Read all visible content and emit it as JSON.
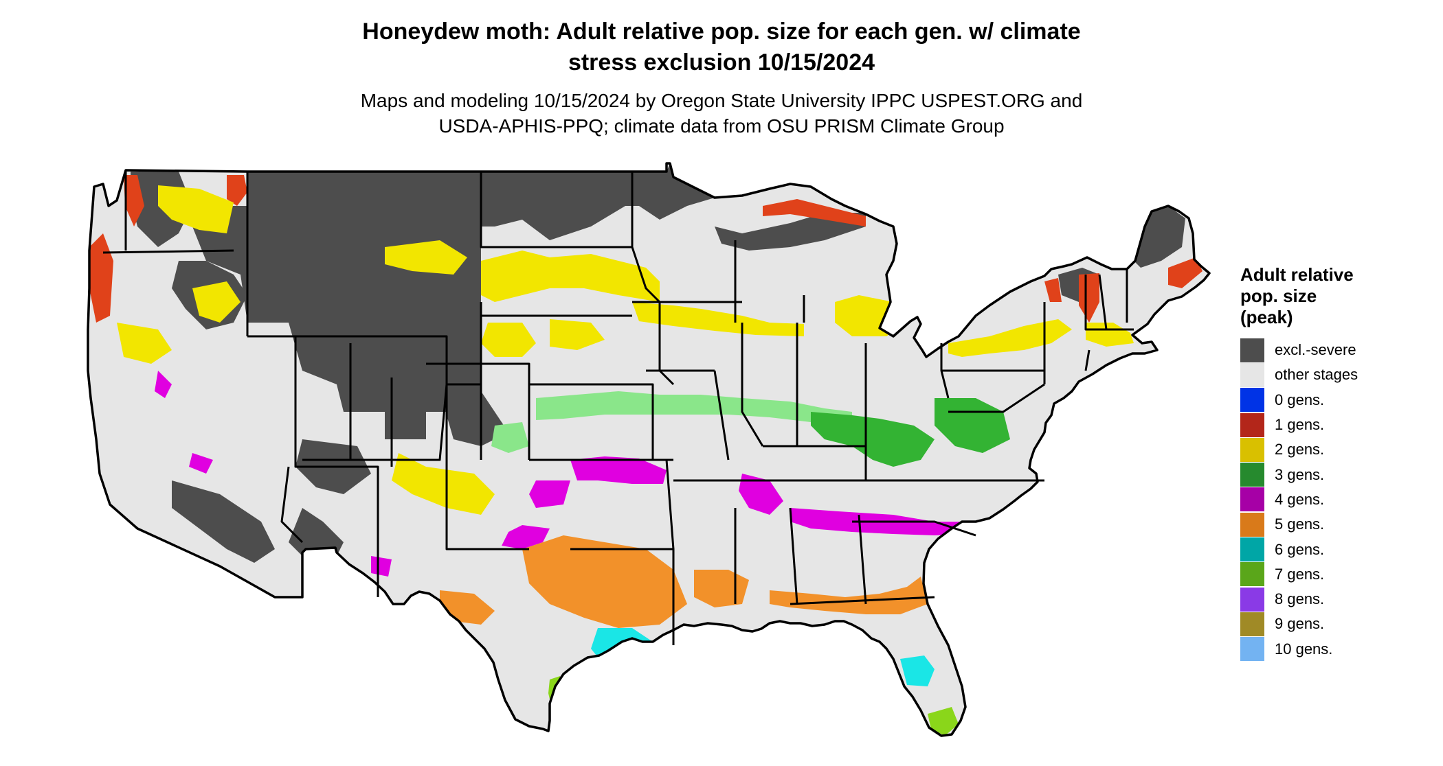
{
  "title": {
    "line1": "Honeydew moth: Adult relative pop. size for each gen. w/ climate",
    "line2": "stress exclusion 10/15/2024"
  },
  "subtitle": {
    "line1": "Maps and modeling 10/15/2024 by Oregon State University IPPC USPEST.ORG and",
    "line2": "USDA-APHIS-PPQ; climate data from OSU PRISM Climate Group"
  },
  "legend": {
    "title_lines": [
      "Adult relative",
      "pop. size",
      "(peak)"
    ],
    "items": [
      {
        "label": "excl.-severe",
        "color": "#4d4d4d"
      },
      {
        "label": "other stages",
        "color": "#e6e6e6"
      },
      {
        "label": "0 gens.",
        "color": "#0033e6"
      },
      {
        "label": "1 gens.",
        "color": "#b3261a"
      },
      {
        "label": "2 gens.",
        "color": "#d9c000"
      },
      {
        "label": "3 gens.",
        "color": "#268a2e"
      },
      {
        "label": "4 gens.",
        "color": "#a600a6"
      },
      {
        "label": "5 gens.",
        "color": "#d97a1a"
      },
      {
        "label": "6 gens.",
        "color": "#00a6a6"
      },
      {
        "label": "7 gens.",
        "color": "#5aa61a"
      },
      {
        "label": "8 gens.",
        "color": "#8a3ae6"
      },
      {
        "label": "9 gens.",
        "color": "#a08a26"
      },
      {
        "label": "10 gens.",
        "color": "#73b3f2"
      }
    ]
  },
  "map_colors": {
    "excluded": "#4d4d4d",
    "other_stages": "#e6e6e6",
    "gen1": "#e0421a",
    "gen2": "#f2e600",
    "gen3_dark": "#33b333",
    "gen3_light": "#8ae68a",
    "gen4": "#e000e0",
    "gen5": "#f2912a",
    "gen6": "#1ae6e6",
    "gen7": "#8ad61a",
    "outline": "#000000"
  }
}
